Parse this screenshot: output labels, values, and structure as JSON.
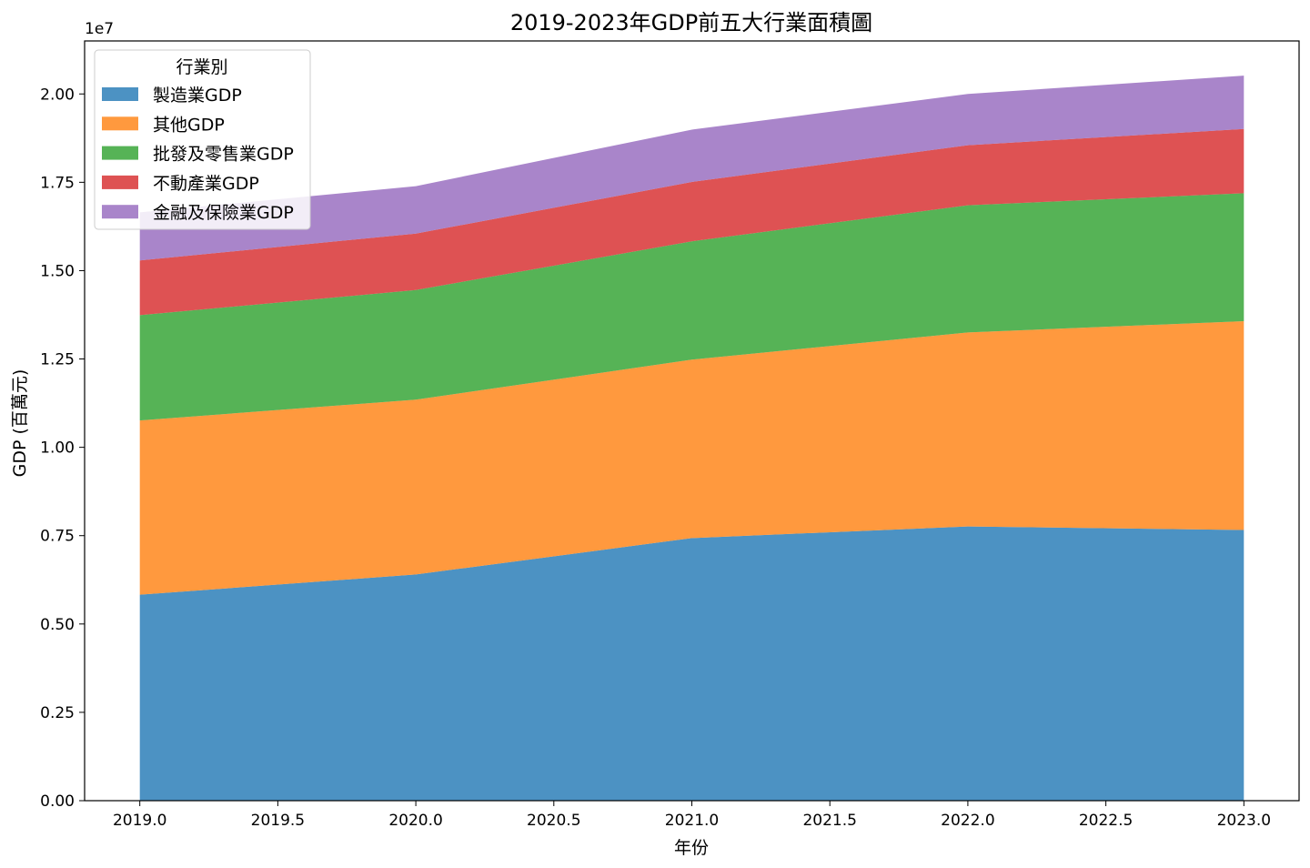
{
  "chart_data": {
    "type": "area",
    "stacked": true,
    "title": "2019-2023年GDP前五大行業面積圖",
    "xlabel": "年份",
    "ylabel": "GDP (百萬元)",
    "y_offset_label": "1e7",
    "x": [
      2019,
      2020,
      2021,
      2022,
      2023
    ],
    "xlim": [
      2018.8,
      2023.2
    ],
    "ylim": [
      0,
      21500000
    ],
    "x_ticks": [
      2019.0,
      2019.5,
      2020.0,
      2020.5,
      2021.0,
      2021.5,
      2022.0,
      2022.5,
      2023.0
    ],
    "x_tick_labels": [
      "2019.0",
      "2019.5",
      "2020.0",
      "2020.5",
      "2021.0",
      "2021.5",
      "2022.0",
      "2022.5",
      "2023.0"
    ],
    "y_ticks": [
      0,
      2500000,
      5000000,
      7500000,
      10000000,
      12500000,
      15000000,
      17500000,
      20000000
    ],
    "y_tick_labels": [
      "0.00",
      "0.25",
      "0.50",
      "0.75",
      "1.00",
      "1.25",
      "1.50",
      "1.75",
      "2.00"
    ],
    "legend_title": "行業別",
    "legend_position": "top-left",
    "grid": false,
    "series": [
      {
        "name": "製造業GDP",
        "color": "#1f77b4",
        "values": [
          5830000,
          6400000,
          7430000,
          7760000,
          7660000
        ]
      },
      {
        "name": "其他GDP",
        "color": "#ff7f0e",
        "values": [
          4930000,
          4950000,
          5050000,
          5490000,
          5910000
        ]
      },
      {
        "name": "批發及零售業GDP",
        "color": "#2ca02c",
        "values": [
          2980000,
          3100000,
          3350000,
          3600000,
          3620000
        ]
      },
      {
        "name": "不動產業GDP",
        "color": "#d62728",
        "values": [
          1550000,
          1600000,
          1680000,
          1700000,
          1820000
        ]
      },
      {
        "name": "金融及保險業GDP",
        "color": "#9467bd",
        "values": [
          1360000,
          1340000,
          1480000,
          1450000,
          1510000
        ]
      }
    ]
  }
}
